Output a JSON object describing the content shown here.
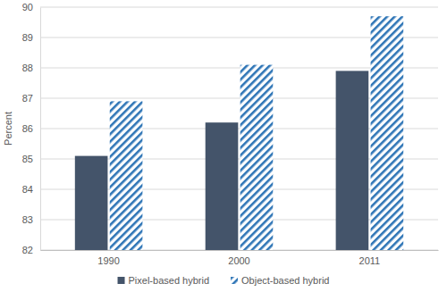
{
  "chart_data": {
    "type": "bar",
    "y_label": "Percent",
    "categories": [
      "1990",
      "2000",
      "2011"
    ],
    "series": [
      {
        "name": "Pixel-based hybrid",
        "color": "#44546a",
        "values": [
          85.1,
          86.2,
          87.9
        ]
      },
      {
        "name": "Object-based hybrid",
        "color": "#2e75b6",
        "values": [
          86.9,
          88.1,
          89.7
        ]
      }
    ],
    "ylim": [
      82,
      90
    ],
    "yticks": [
      82,
      83,
      84,
      85,
      86,
      87,
      88,
      89,
      90
    ],
    "grid": true,
    "legend": "bottom"
  }
}
